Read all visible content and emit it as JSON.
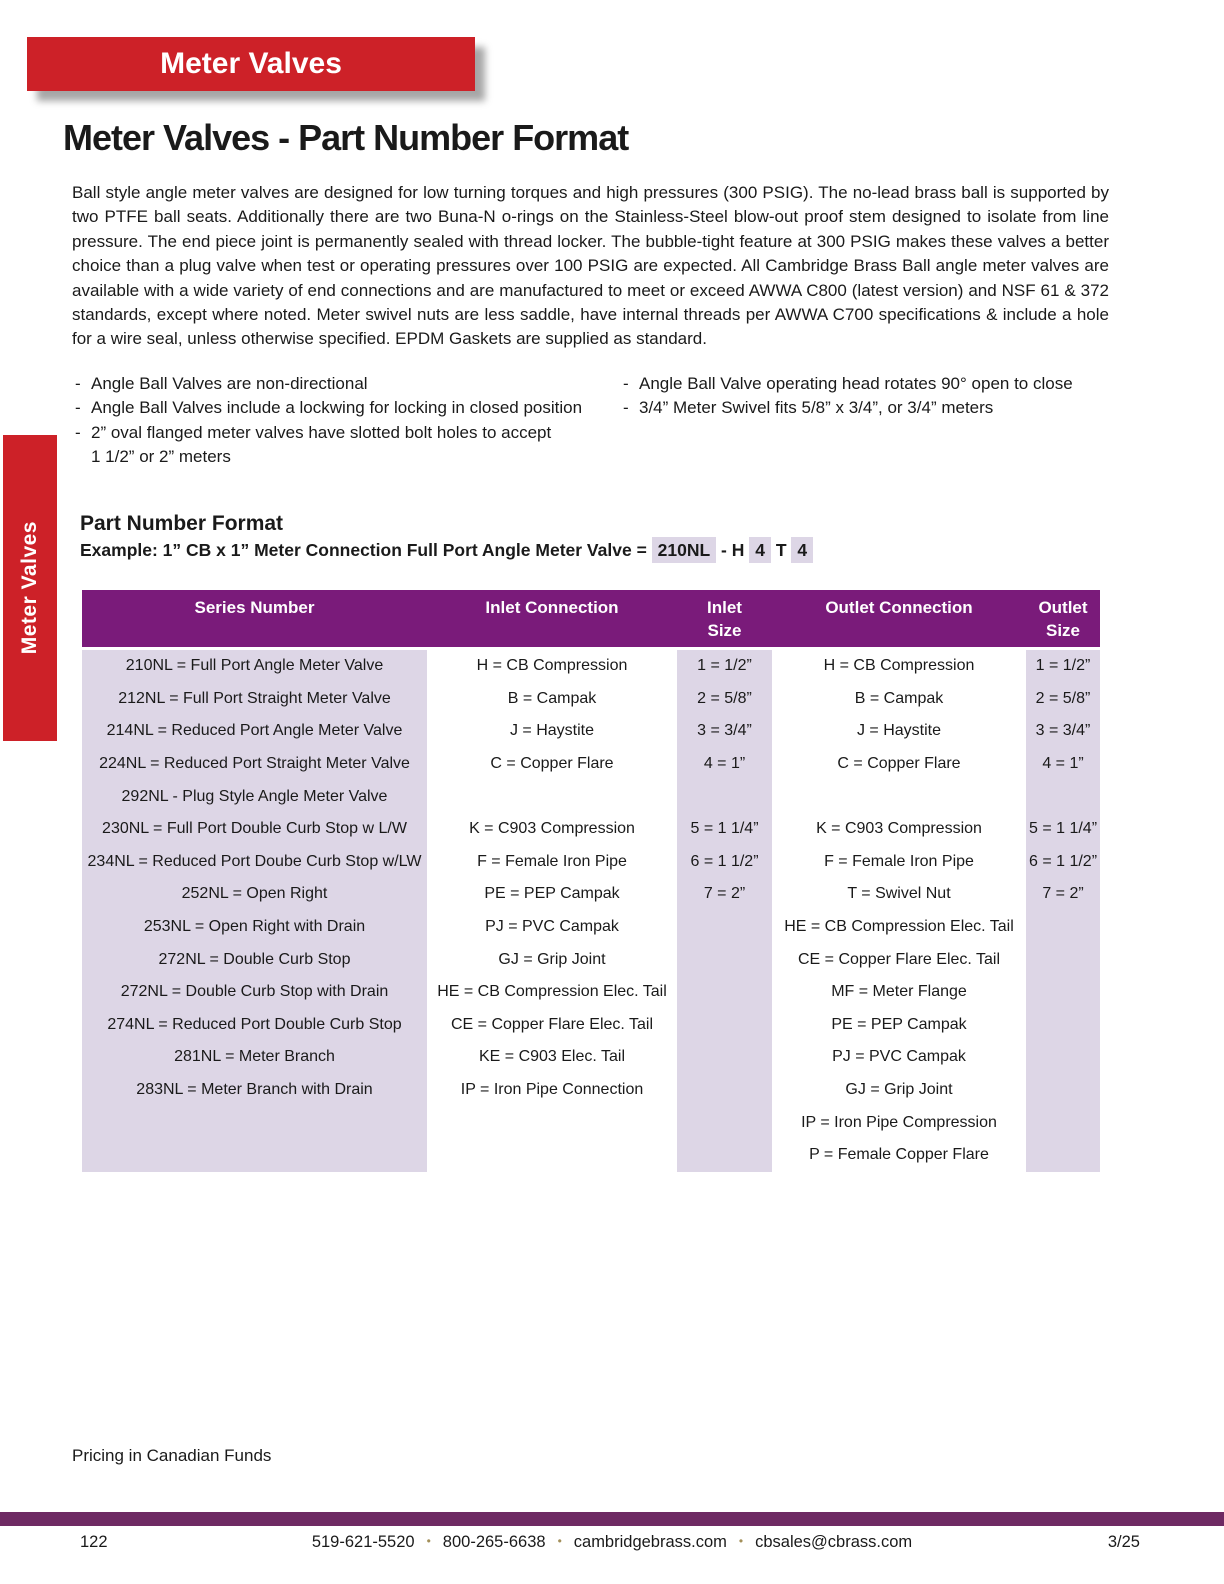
{
  "banner": {
    "label": "Meter Valves"
  },
  "side_tab": {
    "label": "Meter Valves"
  },
  "title": "Meter Valves - Part Number Format",
  "intro": "Ball style angle meter valves are designed for low turning torques and high pressures (300 PSIG). The no-lead brass ball is supported by two PTFE ball seats. Additionally there are two Buna-N o-rings on the Stainless-Steel blow-out proof stem designed to isolate from line pressure. The end piece joint is permanently sealed with thread locker. The bubble-tight feature at 300 PSIG makes these valves a better choice than a plug valve when test or operating pressures over 100 PSIG are expected. All Cambridge Brass Ball angle meter valves are available with a wide variety of end connections and are manufactured to meet or exceed AWWA C800 (latest version) and NSF 61 & 372 standards, except where noted. Meter swivel nuts are less saddle, have internal threads per AWWA C700 specifications & include a hole for a wire seal, unless otherwise specified. EPDM Gaskets are supplied as standard.",
  "bullets_left": [
    "Angle Ball Valves are non-directional",
    "Angle Ball Valves include a lockwing for locking in closed position",
    "2” oval flanged meter valves have slotted bolt holes to accept\n1 1/2” or 2” meters"
  ],
  "bullets_right": [
    "Angle Ball Valve operating head rotates 90° open to close",
    "3/4” Meter Swivel fits 5/8” x 3/4”, or 3/4” meters"
  ],
  "section": {
    "heading": "Part Number Format",
    "example_prefix": "Example: 1” CB x 1” Meter Connection Full Port Angle Meter Valve = ",
    "example_segments": [
      {
        "text": "210NL",
        "highlighted": true
      },
      {
        "text": " - H ",
        "highlighted": false
      },
      {
        "text": "4",
        "highlighted": true
      },
      {
        "text": " T ",
        "highlighted": false
      },
      {
        "text": "4",
        "highlighted": true
      }
    ]
  },
  "table": {
    "headers": [
      "Series Number",
      "Inlet Connection",
      "Inlet\nSize",
      "Outlet Connection",
      "Outlet\nSize"
    ],
    "rows": [
      [
        "210NL = Full Port Angle Meter Valve",
        "H = CB Compression",
        "1 = 1/2”",
        "H = CB Compression",
        "1 = 1/2”"
      ],
      [
        "212NL = Full Port Straight Meter Valve",
        "B = Campak",
        "2 = 5/8”",
        "B = Campak",
        "2 = 5/8”"
      ],
      [
        "214NL = Reduced Port Angle Meter Valve",
        "J = Haystite",
        "3 = 3/4”",
        "J = Haystite",
        "3 = 3/4”"
      ],
      [
        "224NL = Reduced Port Straight Meter Valve",
        "C = Copper Flare",
        "4 = 1”",
        "C = Copper Flare",
        "4 = 1”"
      ],
      [
        "292NL - Plug Style Angle Meter Valve",
        "",
        "",
        "",
        ""
      ],
      [
        "230NL = Full Port Double Curb Stop w L/W",
        "K = C903 Compression",
        "5 = 1 1/4”",
        "K = C903 Compression",
        "5 = 1 1/4”"
      ],
      [
        "234NL = Reduced Port Doube Curb Stop w/LW",
        "F = Female Iron Pipe",
        "6 = 1 1/2”",
        "F = Female Iron Pipe",
        "6 = 1 1/2”"
      ],
      [
        "252NL = Open Right",
        "PE = PEP Campak",
        "7 = 2”",
        "T = Swivel Nut",
        "7 = 2”"
      ],
      [
        "253NL = Open Right with Drain",
        "PJ = PVC Campak",
        "",
        "HE = CB Compression Elec. Tail",
        ""
      ],
      [
        "272NL = Double Curb Stop",
        "GJ = Grip Joint",
        "",
        "CE = Copper Flare Elec. Tail",
        ""
      ],
      [
        "272NL = Double Curb Stop with Drain",
        "HE = CB Compression Elec. Tail",
        "",
        "MF = Meter Flange",
        ""
      ],
      [
        "274NL = Reduced Port Double Curb Stop",
        "CE = Copper Flare Elec. Tail",
        "",
        "PE = PEP Campak",
        ""
      ],
      [
        "281NL = Meter Branch",
        "KE = C903 Elec. Tail",
        "",
        "PJ = PVC Campak",
        ""
      ],
      [
        "283NL = Meter Branch with Drain",
        "IP = Iron Pipe Connection",
        "",
        "GJ = Grip Joint",
        ""
      ],
      [
        "",
        "",
        "",
        "IP = Iron Pipe Compression",
        ""
      ],
      [
        "",
        "",
        "",
        "P = Female Copper Flare",
        ""
      ]
    ]
  },
  "pricing_note": "Pricing in Canadian Funds",
  "footer": {
    "page_number": "122",
    "items": [
      "519-621-5520",
      "800-265-6638",
      "cambridgebrass.com",
      "cbsales@cbrass.com"
    ],
    "edition": "3/25"
  },
  "colors": {
    "brand-red": "#cd2128",
    "table-header-purple": "#7a1b7a",
    "lavender": "#ddd6e6",
    "footer-bar-purple": "#6e2a63",
    "dot-gold": "#a4905a",
    "text": "#1a1a1a"
  }
}
